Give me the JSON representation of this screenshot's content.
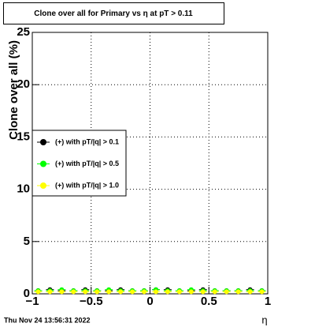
{
  "chart_data": {
    "type": "scatter",
    "title": "Clone  over all for Primary vs   η at pT > 0.11",
    "y_label": "Clone  over all (%)",
    "x_label": "η",
    "xlim": [
      -1,
      1
    ],
    "ylim": [
      0,
      25
    ],
    "xticks": [
      {
        "value": -1,
        "label": "−1"
      },
      {
        "value": -0.5,
        "label": "−0.5"
      },
      0,
      0.5,
      1
    ],
    "yticks": [
      0,
      5,
      10,
      15,
      20,
      25
    ],
    "grid": true,
    "legend": "left",
    "x": [
      -0.95,
      -0.85,
      -0.75,
      -0.65,
      -0.55,
      -0.45,
      -0.35,
      -0.25,
      -0.15,
      -0.05,
      0.05,
      0.15,
      0.25,
      0.35,
      0.45,
      0.55,
      0.65,
      0.75,
      0.85,
      0.95
    ],
    "series": [
      {
        "name": "(+) with pT/|q| > 0.1",
        "color": "#000000",
        "values": [
          0.3,
          0.4,
          0.3,
          0.3,
          0.4,
          0.3,
          0.3,
          0.4,
          0.3,
          0.3,
          0.4,
          0.4,
          0.3,
          0.3,
          0.4,
          0.3,
          0.3,
          0.3,
          0.4,
          0.3
        ]
      },
      {
        "name": "(+) with pT/|q| > 0.5",
        "color": "#00ff00",
        "values": [
          0.3,
          0.3,
          0.4,
          0.3,
          0.3,
          0.3,
          0.4,
          0.3,
          0.3,
          0.3,
          0.4,
          0.3,
          0.3,
          0.4,
          0.3,
          0.3,
          0.3,
          0.3,
          0.3,
          0.3
        ]
      },
      {
        "name": "(+) with pT/|q| > 1.0",
        "color": "#ffff00",
        "values": [
          0.2,
          0.2,
          0.2,
          0.2,
          0.2,
          0.2,
          0.2,
          0.2,
          0.2,
          0.2,
          0.2,
          0.2,
          0.2,
          0.2,
          0.2,
          0.2,
          0.2,
          0.2,
          0.2,
          0.2
        ]
      }
    ]
  },
  "timestamp": "Thu Nov 24 13:56:31 2022"
}
